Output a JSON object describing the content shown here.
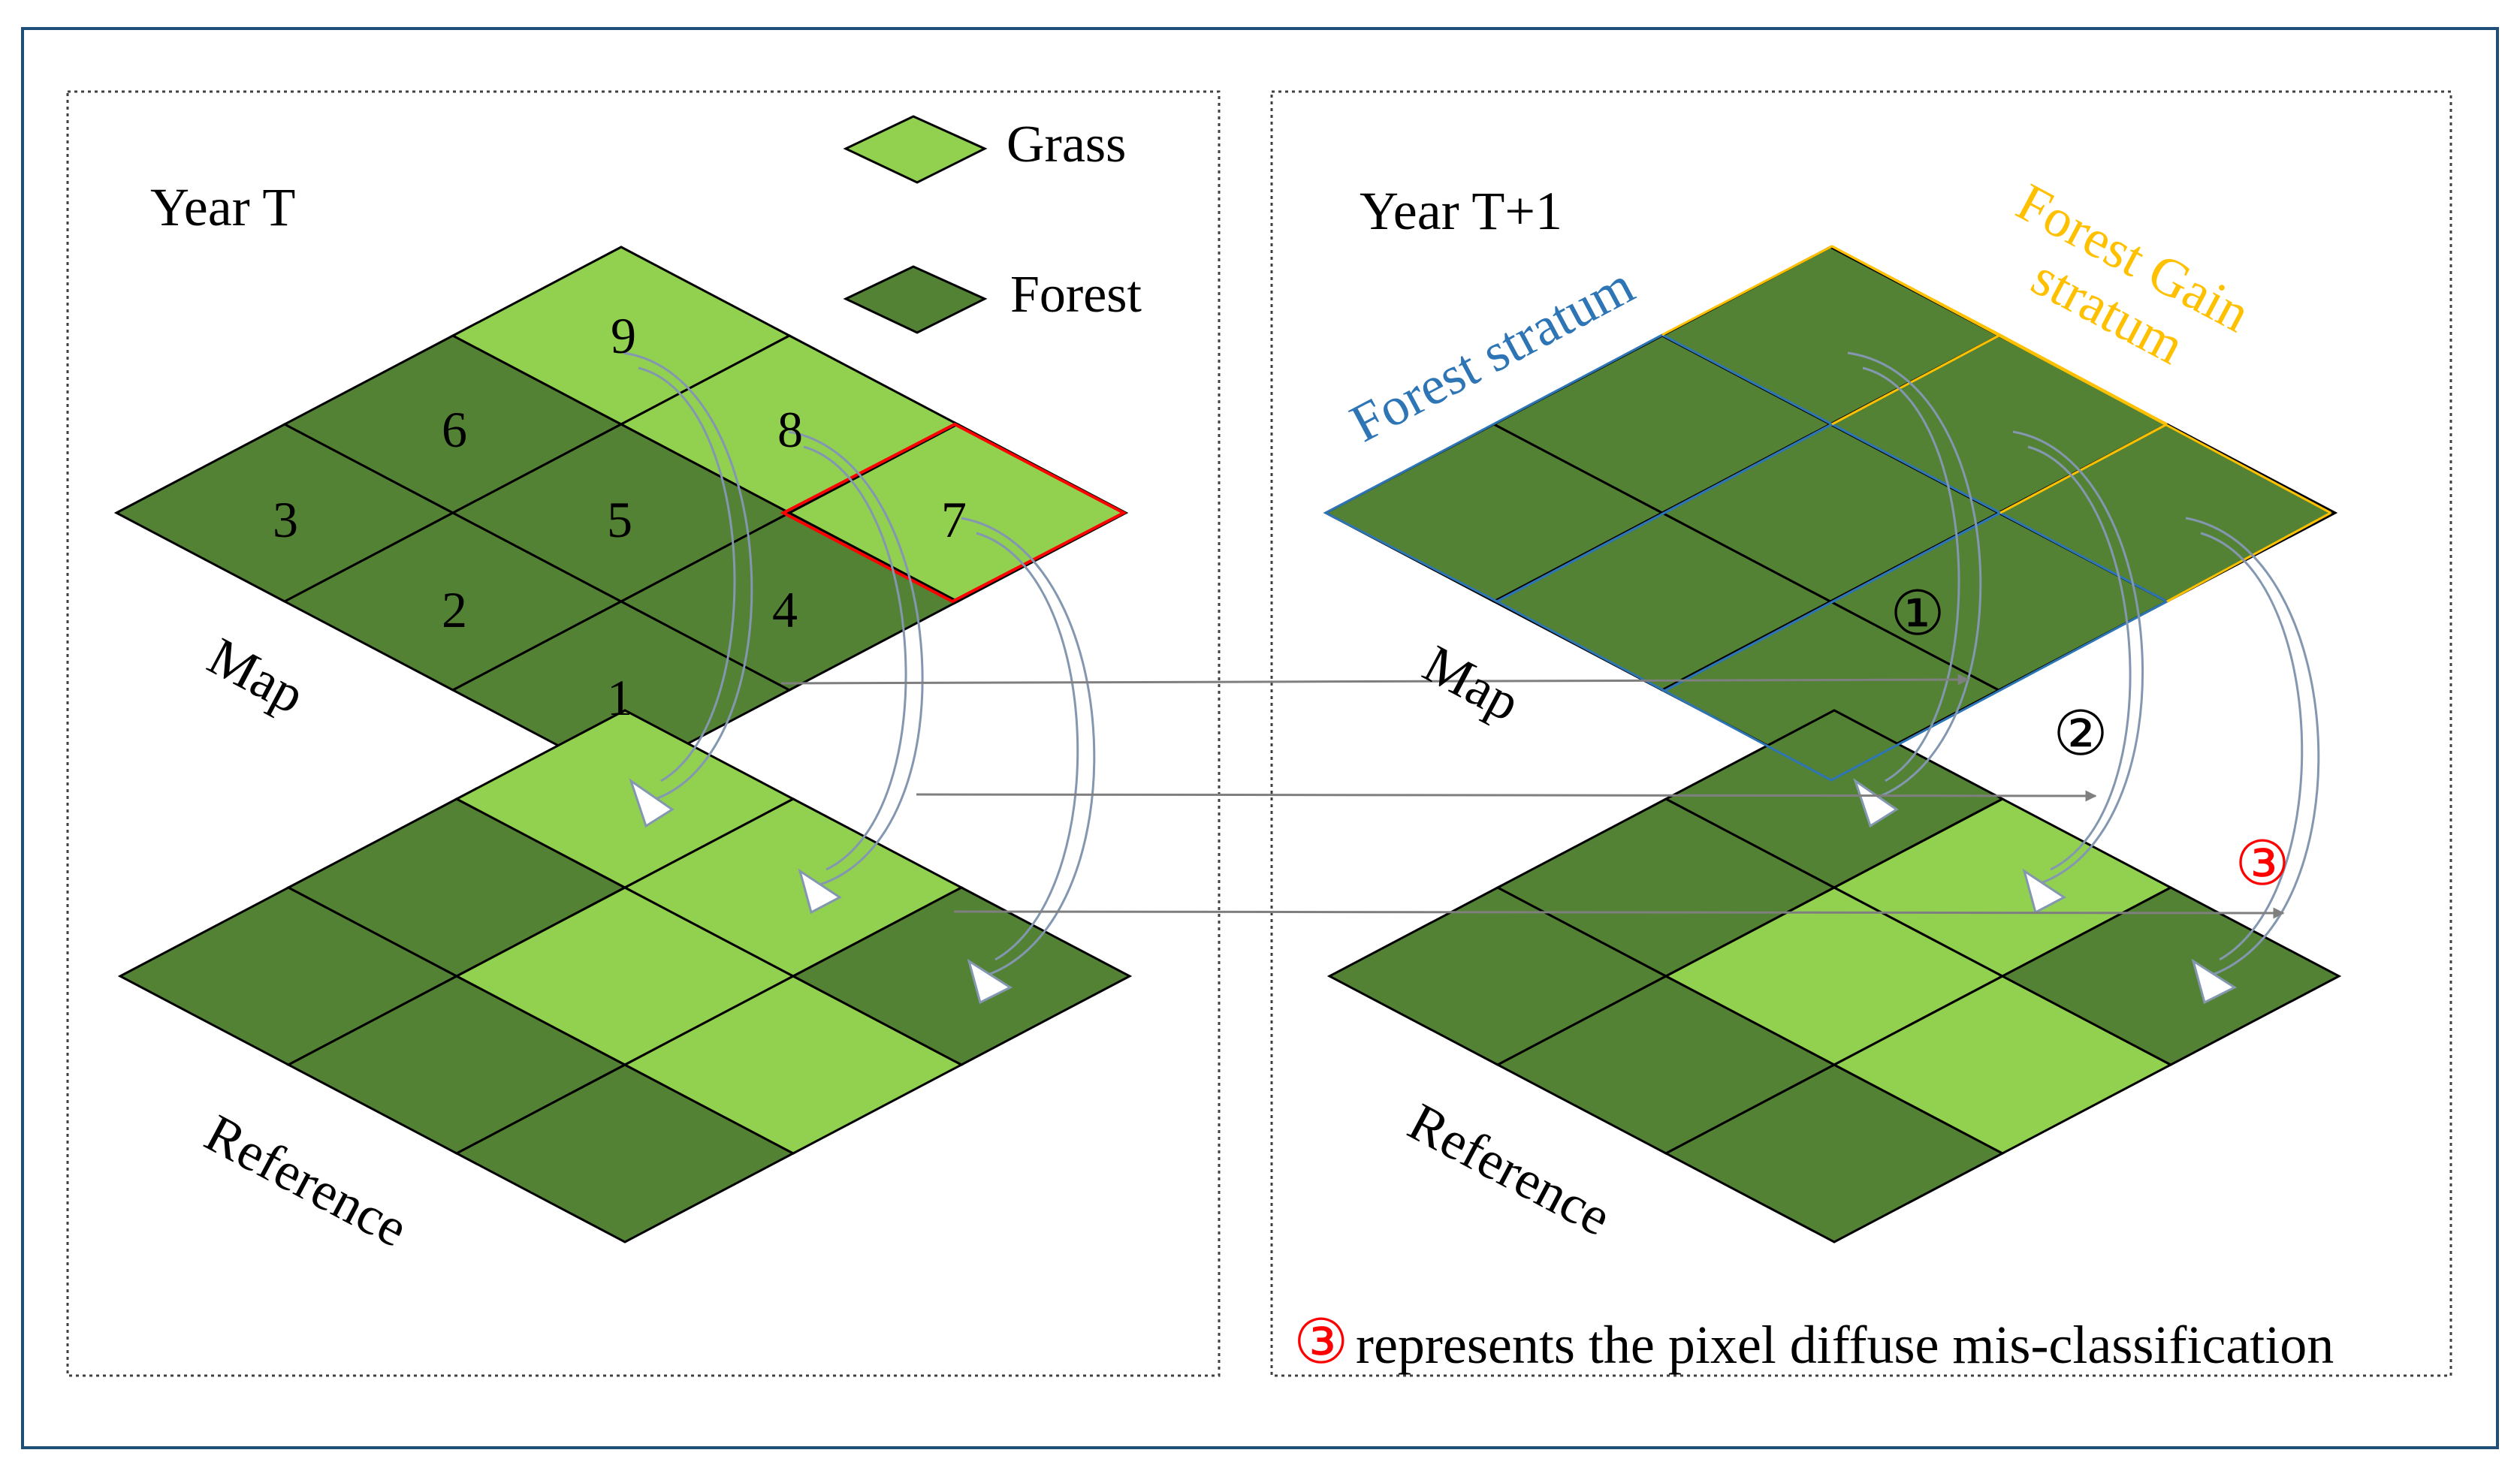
{
  "colors": {
    "grass": "#92d050",
    "forest": "#548235",
    "frame": "#1f4e79",
    "forest_stratum": "#2e75b6",
    "gain_stratum": "#ffc000",
    "highlight": "#ff0000",
    "arrow": "#8497b0"
  },
  "legend": {
    "grass": "Grass",
    "forest": "Forest"
  },
  "left_panel": {
    "title": "Year T",
    "map_label": "Map",
    "reference_label": "Reference",
    "pixel_numbers": [
      "1",
      "2",
      "3",
      "4",
      "5",
      "6",
      "7",
      "8",
      "9"
    ]
  },
  "right_panel": {
    "title": "Year T+1",
    "map_label": "Map",
    "reference_label": "Reference",
    "forest_stratum": "Forest stratum",
    "gain_stratum_line1": "Forest Gain",
    "gain_stratum_line2": "stratum",
    "marker_1": "①",
    "marker_2": "②",
    "marker_3": "③",
    "note_marker": "③",
    "note_text": "represents the pixel diffuse mis-classification"
  }
}
